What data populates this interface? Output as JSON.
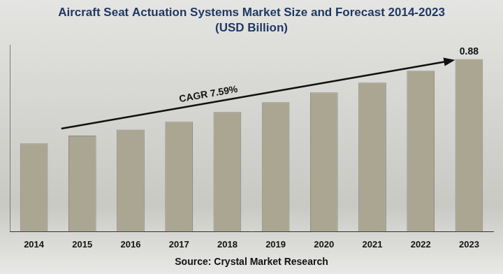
{
  "chart_data": {
    "type": "bar",
    "title": "Aircraft Seat Actuation Systems Market Size and Forecast 2014-2023",
    "subtitle": "(USD Billion)",
    "caption": "Source: Crystal Market Research",
    "categories": [
      "2014",
      "2015",
      "2016",
      "2017",
      "2018",
      "2019",
      "2020",
      "2021",
      "2022",
      "2023"
    ],
    "values": [
      0.45,
      0.49,
      0.52,
      0.56,
      0.61,
      0.66,
      0.71,
      0.76,
      0.82,
      0.88
    ],
    "value_labels": [
      null,
      null,
      null,
      null,
      null,
      null,
      null,
      null,
      null,
      "0.88"
    ],
    "data_labels": true,
    "color": "#aba692",
    "ylim": [
      0,
      0.95
    ],
    "grid": false,
    "tick_labels": "x",
    "annotations": [
      {
        "text": "CAGR 7.59%",
        "from": "2015",
        "to": "2023"
      }
    ]
  }
}
